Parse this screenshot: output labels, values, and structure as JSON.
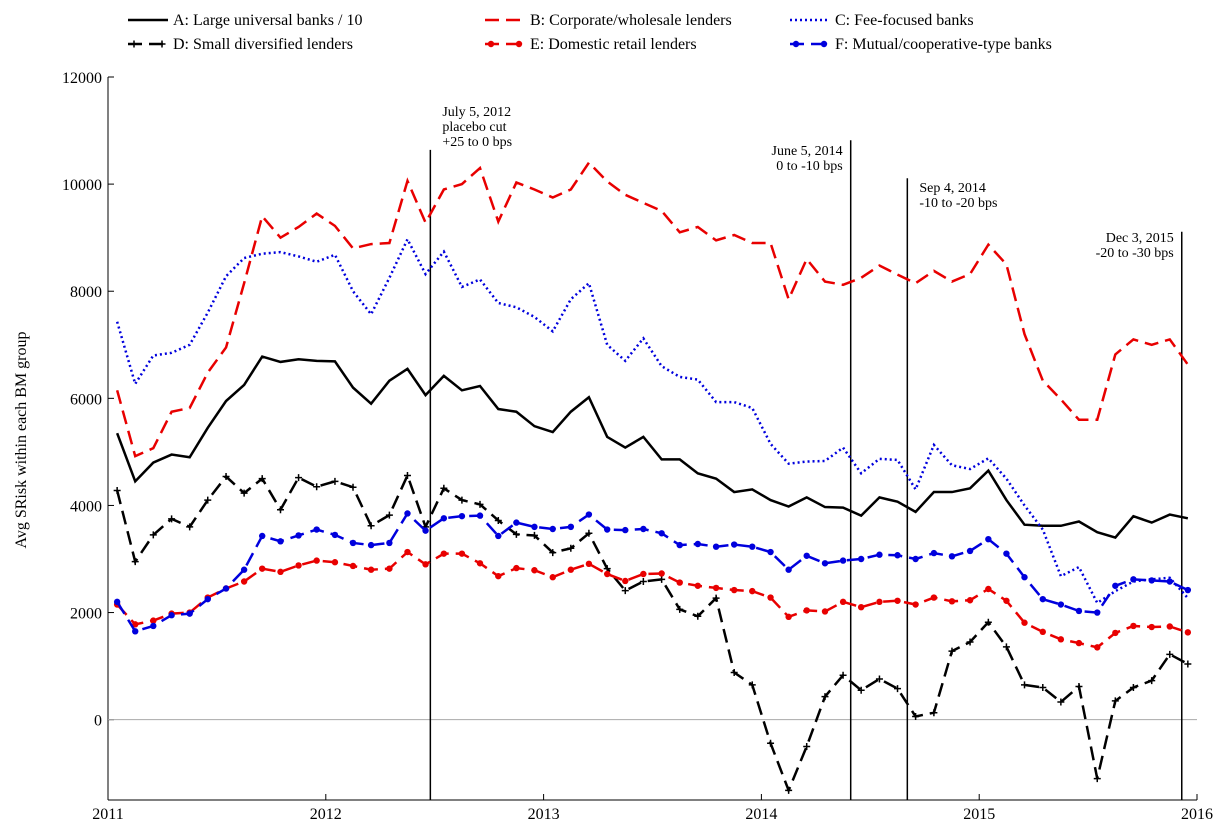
{
  "chart_data": {
    "type": "line",
    "ylabel": "Avg SRisk within each BM group",
    "x": [
      2011.042,
      2011.125,
      2011.208,
      2011.292,
      2011.375,
      2011.458,
      2011.542,
      2011.625,
      2011.708,
      2011.792,
      2011.875,
      2011.958,
      2012.042,
      2012.125,
      2012.208,
      2012.292,
      2012.375,
      2012.458,
      2012.542,
      2012.625,
      2012.708,
      2012.792,
      2012.875,
      2012.958,
      2013.042,
      2013.125,
      2013.208,
      2013.292,
      2013.375,
      2013.458,
      2013.542,
      2013.625,
      2013.708,
      2013.792,
      2013.875,
      2013.958,
      2014.042,
      2014.125,
      2014.208,
      2014.292,
      2014.375,
      2014.458,
      2014.542,
      2014.625,
      2014.708,
      2014.792,
      2014.875,
      2014.958,
      2015.042,
      2015.125,
      2015.208,
      2015.292,
      2015.375,
      2015.458,
      2015.542,
      2015.625,
      2015.708,
      2015.792,
      2015.875,
      2015.958
    ],
    "xlim": [
      2011,
      2016
    ],
    "xticks": [
      2011,
      2012,
      2013,
      2014,
      2015,
      2016
    ],
    "ylim": [
      -1500,
      12000
    ],
    "yticks": [
      0,
      2000,
      4000,
      6000,
      8000,
      10000,
      12000
    ],
    "hline": 0,
    "hline_color": "#aaaaaa",
    "legend": "top",
    "series": [
      {
        "name": "A: Large universal banks / 10",
        "color": "#000000",
        "dash": "solid",
        "marker": "none",
        "values": [
          5350,
          4450,
          4800,
          4950,
          4900,
          5450,
          5950,
          6250,
          6780,
          6680,
          6730,
          6700,
          6690,
          6200,
          5900,
          6330,
          6550,
          6060,
          6420,
          6150,
          6230,
          5800,
          5750,
          5480,
          5370,
          5750,
          6020,
          5280,
          5080,
          5280,
          4860,
          4860,
          4600,
          4500,
          4250,
          4300,
          4100,
          3980,
          4150,
          3970,
          3960,
          3810,
          4150,
          4070,
          3880,
          4250,
          4250,
          4320,
          4650,
          4100,
          3640,
          3620,
          3620,
          3700,
          3500,
          3400,
          3800,
          3680,
          3830,
          3760
        ]
      },
      {
        "name": "B: Corporate/wholesale lenders",
        "color": "#e80000",
        "dash": "dashed",
        "marker": "none",
        "values": [
          6150,
          4920,
          5070,
          5750,
          5820,
          6480,
          6950,
          8150,
          9400,
          9000,
          9200,
          9450,
          9220,
          8800,
          8880,
          8900,
          10060,
          9280,
          9900,
          10000,
          10300,
          9300,
          10030,
          9900,
          9750,
          9900,
          10400,
          10050,
          9800,
          9650,
          9500,
          9100,
          9200,
          8950,
          9050,
          8900,
          8900,
          7850,
          8600,
          8180,
          8120,
          8250,
          8480,
          8310,
          8150,
          8380,
          8180,
          8320,
          8870,
          8500,
          7200,
          6330,
          5980,
          5600,
          5600,
          6820,
          7100,
          7000,
          7100,
          6630
        ]
      },
      {
        "name": "C: Fee-focused banks",
        "color": "#0000dd",
        "dash": "dotted",
        "marker": "none",
        "values": [
          7430,
          6270,
          6800,
          6850,
          7000,
          7600,
          8280,
          8620,
          8700,
          8730,
          8650,
          8550,
          8680,
          8000,
          7570,
          8250,
          8970,
          8320,
          8740,
          8080,
          8220,
          7780,
          7700,
          7520,
          7250,
          7850,
          8150,
          7000,
          6700,
          7120,
          6600,
          6400,
          6350,
          5930,
          5930,
          5820,
          5150,
          4780,
          4820,
          4830,
          5080,
          4600,
          4870,
          4850,
          4300,
          5130,
          4750,
          4680,
          4880,
          4500,
          4000,
          3550,
          2680,
          2850,
          2180,
          2400,
          2580,
          2620,
          2650,
          2270
        ]
      },
      {
        "name": "D: Small diversified lenders",
        "color": "#000000",
        "dash": "dashed",
        "marker": "plus",
        "values": [
          4280,
          2950,
          3450,
          3750,
          3600,
          4100,
          4540,
          4230,
          4500,
          3920,
          4520,
          4350,
          4450,
          4340,
          3620,
          3820,
          4560,
          3600,
          4320,
          4100,
          4020,
          3720,
          3460,
          3440,
          3120,
          3200,
          3480,
          2820,
          2410,
          2580,
          2620,
          2060,
          1930,
          2270,
          880,
          650,
          -440,
          -1320,
          -500,
          430,
          830,
          550,
          760,
          580,
          60,
          130,
          1280,
          1450,
          1820,
          1360,
          650,
          600,
          330,
          620,
          -1100,
          350,
          600,
          730,
          1220,
          1040
        ]
      },
      {
        "name": "E: Domestic retail lenders",
        "color": "#e80000",
        "dash": "dashed",
        "marker": "dot",
        "values": [
          2150,
          1780,
          1850,
          1980,
          2000,
          2280,
          2450,
          2580,
          2820,
          2760,
          2880,
          2970,
          2940,
          2870,
          2800,
          2820,
          3130,
          2900,
          3100,
          3100,
          2920,
          2680,
          2830,
          2790,
          2660,
          2800,
          2910,
          2720,
          2590,
          2720,
          2730,
          2560,
          2500,
          2460,
          2420,
          2400,
          2280,
          1920,
          2040,
          2020,
          2200,
          2100,
          2200,
          2220,
          2150,
          2280,
          2210,
          2230,
          2440,
          2220,
          1810,
          1640,
          1500,
          1430,
          1350,
          1620,
          1750,
          1730,
          1740,
          1630
        ]
      },
      {
        "name": "F: Mutual/cooperative-type banks",
        "color": "#0000dd",
        "dash": "dashed",
        "marker": "dot",
        "values": [
          2200,
          1650,
          1750,
          1950,
          1980,
          2250,
          2450,
          2800,
          3430,
          3330,
          3440,
          3550,
          3450,
          3300,
          3260,
          3300,
          3850,
          3530,
          3760,
          3800,
          3810,
          3430,
          3680,
          3600,
          3560,
          3600,
          3830,
          3550,
          3540,
          3560,
          3480,
          3260,
          3280,
          3230,
          3270,
          3230,
          3130,
          2800,
          3060,
          2920,
          2970,
          3000,
          3080,
          3070,
          3000,
          3110,
          3050,
          3150,
          3370,
          3100,
          2660,
          2250,
          2150,
          2030,
          2000,
          2500,
          2620,
          2600,
          2580,
          2420
        ]
      }
    ],
    "annotations": [
      {
        "x": 2012.48,
        "ymax": 10640,
        "text_y": 11500,
        "side": "right",
        "lines": [
          "July 5, 2012",
          "placebo cut",
          "+25 to 0 bps"
        ]
      },
      {
        "x": 2014.41,
        "ymax": 10820,
        "text_y": 10770,
        "side": "left",
        "lines": [
          "June 5, 2014",
          "0 to -10 bps"
        ]
      },
      {
        "x": 2014.67,
        "ymax": 10110,
        "text_y": 10080,
        "side": "right",
        "lines": [
          "Sep 4, 2014",
          "-10 to -20 bps"
        ]
      },
      {
        "x": 2015.93,
        "ymax": 9110,
        "text_y": 9140,
        "side": "left",
        "lines": [
          "Dec 3, 2015",
          "-20 to -30 bps"
        ]
      }
    ]
  }
}
